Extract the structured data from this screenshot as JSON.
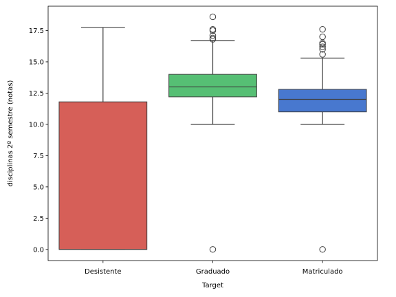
{
  "chart_data": {
    "type": "box",
    "xlabel": "Target",
    "ylabel": "disciplinas 2º semestre (notas)",
    "ylim": [
      -0.89,
      19.45
    ],
    "yticks": [
      0.0,
      2.5,
      5.0,
      7.5,
      10.0,
      12.5,
      15.0,
      17.5
    ],
    "ytick_labels": [
      "0.0",
      "2.5",
      "5.0",
      "7.5",
      "10.0",
      "12.5",
      "15.0",
      "17.5"
    ],
    "grid": false,
    "categories": [
      "Desistente",
      "Graduado",
      "Matriculado"
    ],
    "colors": [
      "#d65f58",
      "#56bf74",
      "#4878cf"
    ],
    "boxes": [
      {
        "category": "Desistente",
        "whisker_low": 0.0,
        "q1": 0.0,
        "median": 0.0,
        "q3": 11.8,
        "whisker_high": 17.75,
        "fliers": []
      },
      {
        "category": "Graduado",
        "whisker_low": 10.0,
        "q1": 12.2,
        "median": 13.0,
        "q3": 14.0,
        "whisker_high": 16.7,
        "fliers": [
          0.0,
          16.8,
          16.9,
          17.1,
          17.5,
          17.6,
          18.6
        ]
      },
      {
        "category": "Matriculado",
        "whisker_low": 10.0,
        "q1": 11.0,
        "median": 12.0,
        "q3": 12.8,
        "whisker_high": 15.3,
        "fliers": [
          0.0,
          15.6,
          16.0,
          16.2,
          16.4,
          16.5,
          17.0,
          17.6
        ]
      }
    ]
  }
}
